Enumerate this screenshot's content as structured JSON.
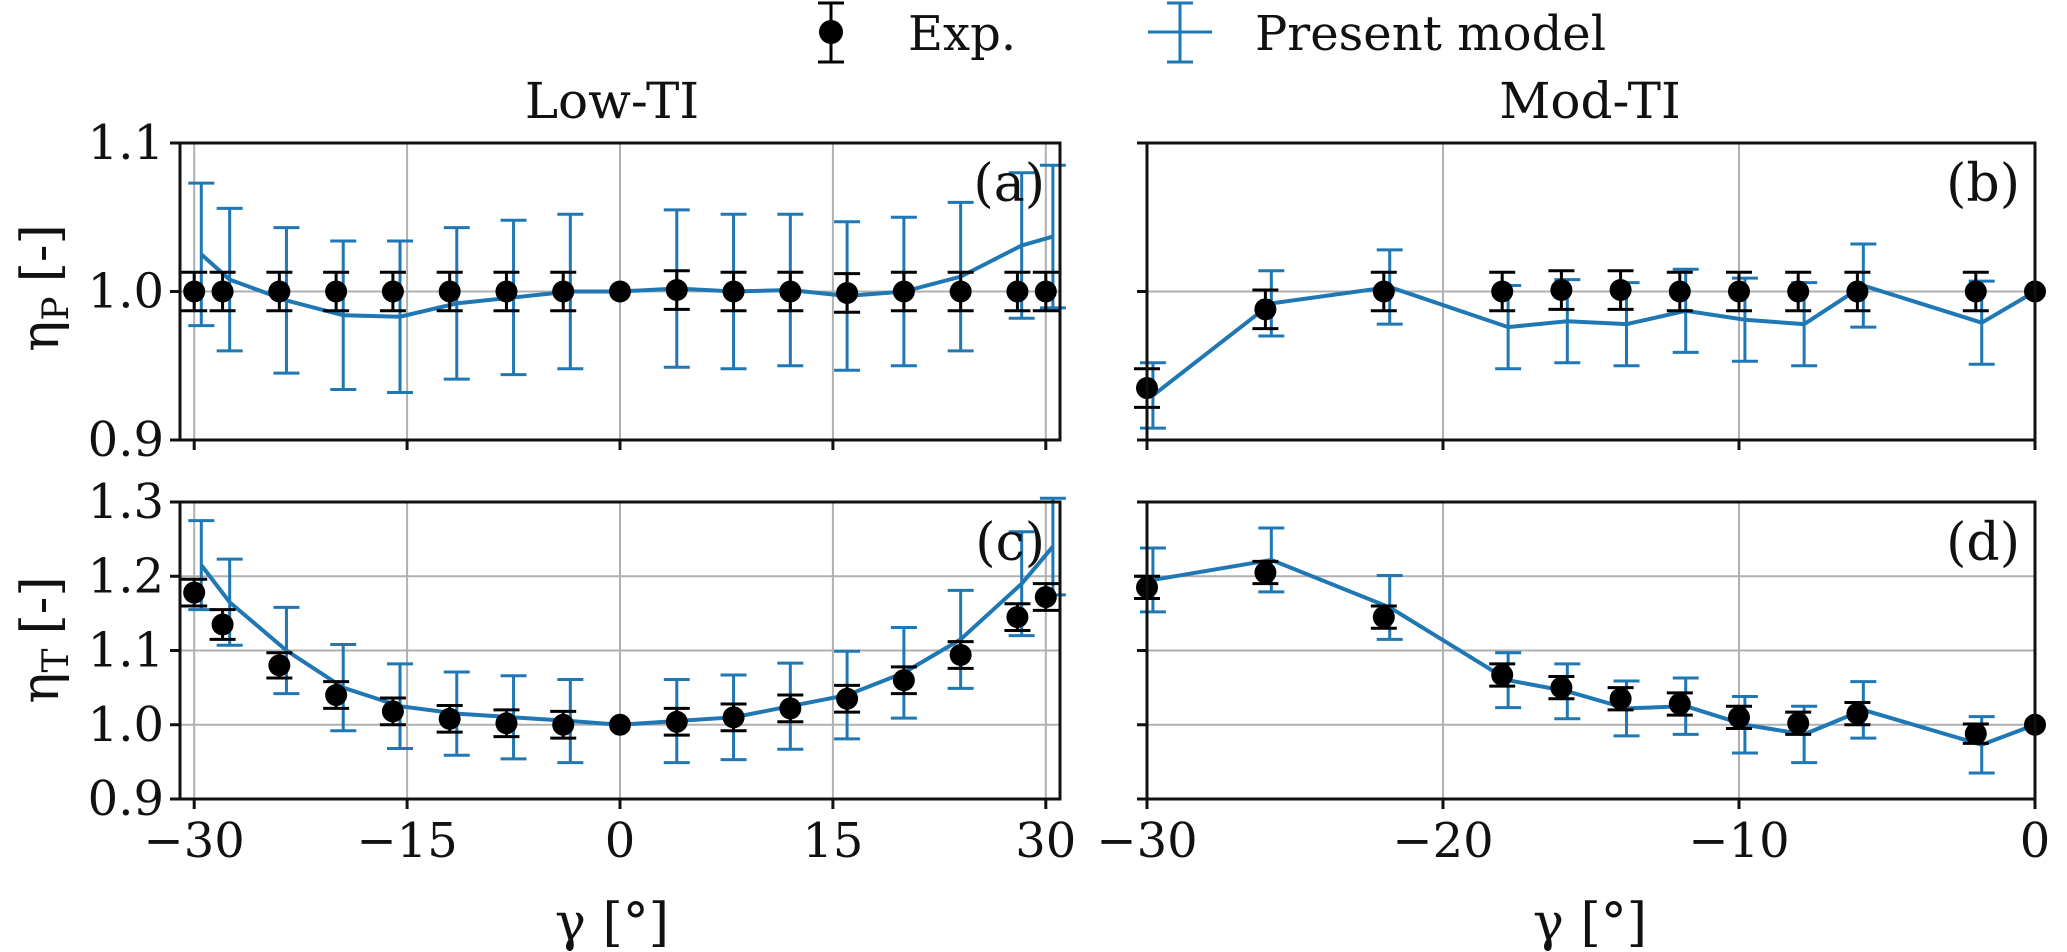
{
  "legend": {
    "exp_label": "Exp.",
    "model_label": "Present model"
  },
  "colors": {
    "exp": "#000000",
    "model": "#1f77b4",
    "grid": "#b0b0b0"
  },
  "chart_data": [
    {
      "id": "a",
      "panel_label": "(a)",
      "type": "scatter",
      "column_title": "Low-TI",
      "ylabel": "η_P [-]",
      "ylabel_base": "η",
      "ylabel_sub": "P",
      "ylabel_unit": "[-]",
      "xlabel": "",
      "xlim": [
        -31,
        31
      ],
      "ylim": [
        0.9,
        1.1
      ],
      "xticks": [
        -30,
        -15,
        0,
        15,
        30
      ],
      "xtick_labels": [
        "",
        "",
        "",
        "",
        ""
      ],
      "yticks": [
        0.9,
        1.0,
        1.1
      ],
      "ytick_labels": [
        "0.9",
        "1.0",
        "1.1"
      ],
      "grid": true,
      "series": [
        {
          "name": "Exp.",
          "x": [
            -30,
            -28,
            -24,
            -20,
            -16,
            -12,
            -8,
            -4,
            0,
            4,
            8,
            12,
            16,
            20,
            24,
            28,
            30
          ],
          "y": [
            1.0,
            1.0,
            1.0,
            1.0,
            1.0,
            1.0,
            1.0,
            1.0,
            1.0,
            1.001,
            1.0,
            1.0,
            0.999,
            1.0,
            1.0,
            1.0,
            1.0
          ],
          "err": [
            0.013,
            0.013,
            0.013,
            0.013,
            0.013,
            0.013,
            0.013,
            0.013,
            0.0,
            0.013,
            0.013,
            0.013,
            0.013,
            0.013,
            0.013,
            0.013,
            0.013
          ]
        },
        {
          "name": "Present model",
          "x": [
            -29.5,
            -27.5,
            -23.5,
            -19.5,
            -15.5,
            -11.5,
            -7.5,
            -3.5,
            0,
            4,
            8,
            12,
            16,
            20,
            24,
            28.3,
            30.5
          ],
          "y": [
            1.025,
            1.008,
            0.994,
            0.984,
            0.983,
            0.992,
            0.996,
            1.0,
            1.0,
            1.002,
            1.0,
            1.001,
            0.997,
            1.0,
            1.01,
            1.031,
            1.037
          ],
          "err": [
            0.048,
            0.048,
            0.049,
            0.05,
            0.051,
            0.051,
            0.052,
            0.052,
            0.0,
            0.053,
            0.052,
            0.051,
            0.05,
            0.05,
            0.05,
            0.049,
            0.048
          ]
        }
      ]
    },
    {
      "id": "b",
      "panel_label": "(b)",
      "type": "scatter",
      "column_title": "Mod-TI",
      "ylabel": "",
      "xlabel": "",
      "xlim": [
        -30,
        0
      ],
      "ylim": [
        0.9,
        1.1
      ],
      "xticks": [
        -30,
        -20,
        -10,
        0
      ],
      "xtick_labels": [
        "",
        "",
        "",
        ""
      ],
      "yticks": [
        0.9,
        1.0,
        1.1
      ],
      "ytick_labels": [
        "",
        "",
        ""
      ],
      "grid": true,
      "series": [
        {
          "name": "Exp.",
          "x": [
            -30,
            -26,
            -22,
            -18,
            -16,
            -14,
            -12,
            -10,
            -8,
            -6,
            -2,
            0
          ],
          "y": [
            0.935,
            0.988,
            1.0,
            1.0,
            1.001,
            1.001,
            1.0,
            1.0,
            1.0,
            1.0,
            1.0,
            1.0
          ],
          "err": [
            0.013,
            0.013,
            0.013,
            0.013,
            0.013,
            0.013,
            0.013,
            0.013,
            0.013,
            0.013,
            0.013,
            0.0
          ]
        },
        {
          "name": "Present model",
          "x": [
            -29.8,
            -25.8,
            -21.8,
            -17.8,
            -15.8,
            -13.8,
            -11.8,
            -9.8,
            -7.8,
            -5.8,
            -1.8,
            0
          ],
          "y": [
            0.93,
            0.992,
            1.003,
            0.976,
            0.98,
            0.978,
            0.987,
            0.981,
            0.978,
            1.004,
            0.979,
            1.0
          ],
          "err": [
            0.022,
            0.022,
            0.025,
            0.028,
            0.028,
            0.028,
            0.028,
            0.028,
            0.028,
            0.028,
            0.028,
            0.0
          ]
        }
      ]
    },
    {
      "id": "c",
      "panel_label": "(c)",
      "type": "scatter",
      "column_title": "",
      "ylabel": "η_T [-]",
      "ylabel_base": "η",
      "ylabel_sub": "T",
      "ylabel_unit": "[-]",
      "xlabel": "γ [°]",
      "xlim": [
        -31,
        31
      ],
      "ylim": [
        0.9,
        1.3
      ],
      "xticks": [
        -30,
        -15,
        0,
        15,
        30
      ],
      "xtick_labels": [
        "−30",
        "−15",
        "0",
        "15",
        "30"
      ],
      "yticks": [
        0.9,
        1.0,
        1.1,
        1.2,
        1.3
      ],
      "ytick_labels": [
        "0.9",
        "1.0",
        "1.1",
        "1.2",
        "1.3"
      ],
      "grid": true,
      "series": [
        {
          "name": "Exp.",
          "x": [
            -30,
            -28,
            -24,
            -20,
            -16,
            -12,
            -8,
            -4,
            0,
            4,
            8,
            12,
            16,
            20,
            24,
            28,
            30
          ],
          "y": [
            1.178,
            1.135,
            1.08,
            1.04,
            1.018,
            1.008,
            1.002,
            1.0,
            1.0,
            1.004,
            1.01,
            1.022,
            1.035,
            1.06,
            1.094,
            1.145,
            1.172
          ],
          "err": [
            0.018,
            0.02,
            0.017,
            0.018,
            0.018,
            0.018,
            0.018,
            0.018,
            0.0,
            0.018,
            0.018,
            0.018,
            0.018,
            0.018,
            0.018,
            0.018,
            0.018
          ]
        },
        {
          "name": "Present model",
          "x": [
            -29.5,
            -27.5,
            -23.5,
            -19.5,
            -15.5,
            -11.5,
            -7.5,
            -3.5,
            0,
            4,
            8,
            12,
            16,
            20,
            24,
            28.3,
            30.5
          ],
          "y": [
            1.215,
            1.165,
            1.1,
            1.05,
            1.025,
            1.015,
            1.01,
            1.005,
            1.0,
            1.005,
            1.01,
            1.025,
            1.04,
            1.07,
            1.115,
            1.19,
            1.24
          ],
          "err": [
            0.06,
            0.058,
            0.058,
            0.058,
            0.057,
            0.056,
            0.056,
            0.056,
            0.0,
            0.056,
            0.057,
            0.058,
            0.059,
            0.061,
            0.066,
            0.07,
            0.065
          ]
        }
      ]
    },
    {
      "id": "d",
      "panel_label": "(d)",
      "type": "scatter",
      "column_title": "",
      "ylabel": "",
      "xlabel": "γ [°]",
      "xlim": [
        -30,
        0
      ],
      "ylim": [
        0.9,
        1.3
      ],
      "xticks": [
        -30,
        -20,
        -10,
        0
      ],
      "xtick_labels": [
        "−30",
        "−20",
        "−10",
        "0"
      ],
      "yticks": [
        0.9,
        1.0,
        1.1,
        1.2,
        1.3
      ],
      "ytick_labels": [
        "",
        "",
        "",
        "",
        ""
      ],
      "grid": true,
      "series": [
        {
          "name": "Exp.",
          "x": [
            -30,
            -26,
            -22,
            -18,
            -16,
            -14,
            -12,
            -10,
            -8,
            -6,
            -2,
            0
          ],
          "y": [
            1.185,
            1.205,
            1.145,
            1.067,
            1.05,
            1.035,
            1.028,
            1.01,
            1.002,
            1.015,
            0.988,
            1.0
          ],
          "err": [
            0.015,
            0.015,
            0.015,
            0.015,
            0.015,
            0.015,
            0.015,
            0.015,
            0.015,
            0.015,
            0.013,
            0.0
          ]
        },
        {
          "name": "Present model",
          "x": [
            -29.8,
            -25.8,
            -21.8,
            -17.8,
            -15.8,
            -13.8,
            -11.8,
            -9.8,
            -7.8,
            -5.8,
            -1.8,
            0
          ],
          "y": [
            1.195,
            1.222,
            1.158,
            1.06,
            1.045,
            1.022,
            1.025,
            1.0,
            0.987,
            1.02,
            0.973,
            1.0
          ],
          "err": [
            0.043,
            0.043,
            0.043,
            0.037,
            0.037,
            0.037,
            0.038,
            0.038,
            0.038,
            0.038,
            0.038,
            0.0
          ]
        }
      ]
    }
  ]
}
